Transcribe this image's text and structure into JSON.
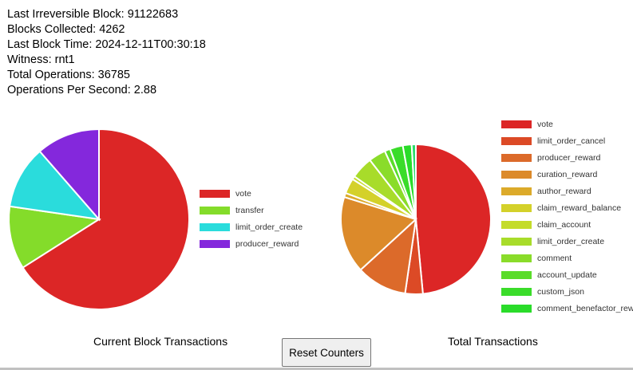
{
  "stats": {
    "last_irreversible_block": "Last Irreversible Block: 91122683",
    "blocks_collected": "Blocks Collected: 4262",
    "last_block_time": "Last Block Time: 2024-12-11T00:30:18",
    "witness": "Witness: rnt1",
    "total_operations": "Total Operations: 36785",
    "ops_per_second": "Operations Per Second: 2.88"
  },
  "reset_button_label": "Reset Counters",
  "chart_data": [
    {
      "type": "pie",
      "title": "Current Block Transactions",
      "legend": "right",
      "slices": [
        {
          "label": "vote",
          "value": 66,
          "color": "#dc2626"
        },
        {
          "label": "transfer",
          "value": 11.3,
          "color": "#84dc2a"
        },
        {
          "label": "limit_order_create",
          "value": 11.3,
          "color": "#2adcdc"
        },
        {
          "label": "producer_reward",
          "value": 11.4,
          "color": "#8428dc"
        }
      ]
    },
    {
      "type": "pie",
      "title": "Total Transactions",
      "legend": "right",
      "slices": [
        {
          "label": "vote",
          "value": 48.5,
          "color": "#dc2626"
        },
        {
          "label": "limit_order_cancel",
          "value": 3.8,
          "color": "#dc4a26"
        },
        {
          "label": "producer_reward",
          "value": 10.9,
          "color": "#dc6a2a"
        },
        {
          "label": "curation_reward",
          "value": 16.6,
          "color": "#dc8a2a"
        },
        {
          "label": "author_reward",
          "value": 0.9,
          "color": "#dcaa2a"
        },
        {
          "label": "claim_reward_balance",
          "value": 3.3,
          "color": "#d4d12a"
        },
        {
          "label": "claim_account",
          "value": 0.7,
          "color": "#c4dc2a"
        },
        {
          "label": "limit_order_create",
          "value": 4.8,
          "color": "#a8dc2a"
        },
        {
          "label": "comment",
          "value": 3.7,
          "color": "#8adc2a"
        },
        {
          "label": "account_update",
          "value": 1.2,
          "color": "#5adc2a"
        },
        {
          "label": "custom_json",
          "value": 2.8,
          "color": "#3adc2a"
        },
        {
          "label": "comment_benefactor_reward",
          "value": 1.9,
          "color": "#2adc2a"
        },
        {
          "label": "",
          "value": 0.9,
          "color": "#2adc6a"
        }
      ]
    }
  ]
}
